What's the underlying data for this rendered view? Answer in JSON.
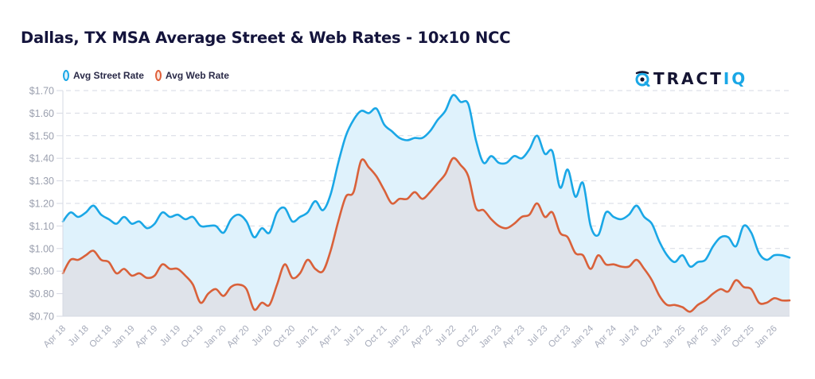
{
  "page": {
    "title": "Dallas, TX MSA Average Street & Web Rates - 10x10 NCC"
  },
  "logo": {
    "icon": "tractiq-target-icon",
    "text_dark": "TRACT",
    "text_accent": "IQ"
  },
  "legend": [
    {
      "label": "Avg Street Rate",
      "color": "#1aa7e6",
      "icon": "ellipse-outline-icon"
    },
    {
      "label": "Avg Web Rate",
      "color": "#e0603a",
      "icon": "ellipse-outline-icon"
    }
  ],
  "colors": {
    "street_line": "#1aa7e6",
    "street_fill": "#dff2fc",
    "web_line": "#d9613a",
    "web_fill": "#dfe3ea",
    "grid": "#d6d9e3",
    "axis": "#d6d9e3"
  },
  "chart_data": {
    "type": "area",
    "title": "Dallas, TX MSA Average Street & Web Rates - 10x10 NCC",
    "xlabel": "",
    "ylabel": "",
    "ylim": [
      0.7,
      1.7
    ],
    "yticks": [
      1.7,
      1.6,
      1.5,
      1.4,
      1.3,
      1.2,
      1.1,
      1.0,
      0.9,
      0.8,
      0.7
    ],
    "ytick_labels": [
      "$1.70",
      "$1.60",
      "$1.50",
      "$1.40",
      "$1.30",
      "$1.20",
      "$1.10",
      "$1.00",
      "$0.90",
      "$0.80",
      "$0.70"
    ],
    "grid": "horizontal-dashed",
    "legend_position": "top-left",
    "x_start": "Apr 2018",
    "x_frequency": "monthly",
    "xtick_labels": [
      "Apr 18",
      "Jul 18",
      "Oct 18",
      "Jan 19",
      "Apr 19",
      "Jul 19",
      "Oct 19",
      "Jan 20",
      "Apr 20",
      "Jul 20",
      "Oct 20",
      "Jan 21",
      "Apr 21",
      "Jul 21",
      "Oct 21",
      "Jan 22",
      "Apr 22",
      "Jul 22",
      "Oct 22",
      "Jan 23",
      "Apr 23",
      "Jul 23",
      "Oct 23",
      "Jan 24",
      "Apr 24",
      "Jul 24",
      "Oct 24",
      "Jan 25",
      "Apr 25",
      "Jul 25",
      "Oct 25",
      "Jan 26"
    ],
    "xtick_every_n_months": 3,
    "series": [
      {
        "name": "Avg Street Rate",
        "values": [
          1.12,
          1.16,
          1.14,
          1.16,
          1.19,
          1.15,
          1.13,
          1.11,
          1.14,
          1.11,
          1.12,
          1.09,
          1.11,
          1.16,
          1.14,
          1.15,
          1.13,
          1.14,
          1.1,
          1.1,
          1.1,
          1.07,
          1.13,
          1.15,
          1.12,
          1.05,
          1.09,
          1.07,
          1.16,
          1.18,
          1.12,
          1.14,
          1.16,
          1.21,
          1.17,
          1.24,
          1.38,
          1.5,
          1.57,
          1.61,
          1.6,
          1.62,
          1.55,
          1.52,
          1.49,
          1.48,
          1.49,
          1.49,
          1.52,
          1.57,
          1.61,
          1.68,
          1.65,
          1.64,
          1.48,
          1.38,
          1.41,
          1.38,
          1.38,
          1.41,
          1.4,
          1.44,
          1.5,
          1.42,
          1.43,
          1.27,
          1.35,
          1.23,
          1.29,
          1.1,
          1.06,
          1.16,
          1.14,
          1.13,
          1.15,
          1.19,
          1.14,
          1.11,
          1.03,
          0.97,
          0.94,
          0.97,
          0.92,
          0.94,
          0.95,
          1.01,
          1.05,
          1.05,
          1.01,
          1.1,
          1.07,
          0.98,
          0.95,
          0.97,
          0.97,
          0.96
        ]
      },
      {
        "name": "Avg Web Rate",
        "values": [
          0.89,
          0.95,
          0.95,
          0.97,
          0.99,
          0.95,
          0.94,
          0.89,
          0.91,
          0.88,
          0.89,
          0.87,
          0.88,
          0.93,
          0.91,
          0.91,
          0.88,
          0.84,
          0.76,
          0.8,
          0.82,
          0.79,
          0.83,
          0.84,
          0.82,
          0.73,
          0.76,
          0.75,
          0.84,
          0.93,
          0.87,
          0.89,
          0.95,
          0.91,
          0.9,
          0.99,
          1.12,
          1.23,
          1.25,
          1.39,
          1.36,
          1.32,
          1.26,
          1.2,
          1.22,
          1.22,
          1.25,
          1.22,
          1.25,
          1.29,
          1.33,
          1.4,
          1.37,
          1.32,
          1.18,
          1.17,
          1.13,
          1.1,
          1.09,
          1.11,
          1.14,
          1.15,
          1.2,
          1.14,
          1.16,
          1.07,
          1.05,
          0.98,
          0.97,
          0.91,
          0.97,
          0.93,
          0.93,
          0.92,
          0.92,
          0.95,
          0.91,
          0.86,
          0.79,
          0.75,
          0.75,
          0.74,
          0.72,
          0.75,
          0.77,
          0.8,
          0.82,
          0.81,
          0.86,
          0.83,
          0.82,
          0.76,
          0.76,
          0.78,
          0.77,
          0.77
        ]
      }
    ]
  }
}
